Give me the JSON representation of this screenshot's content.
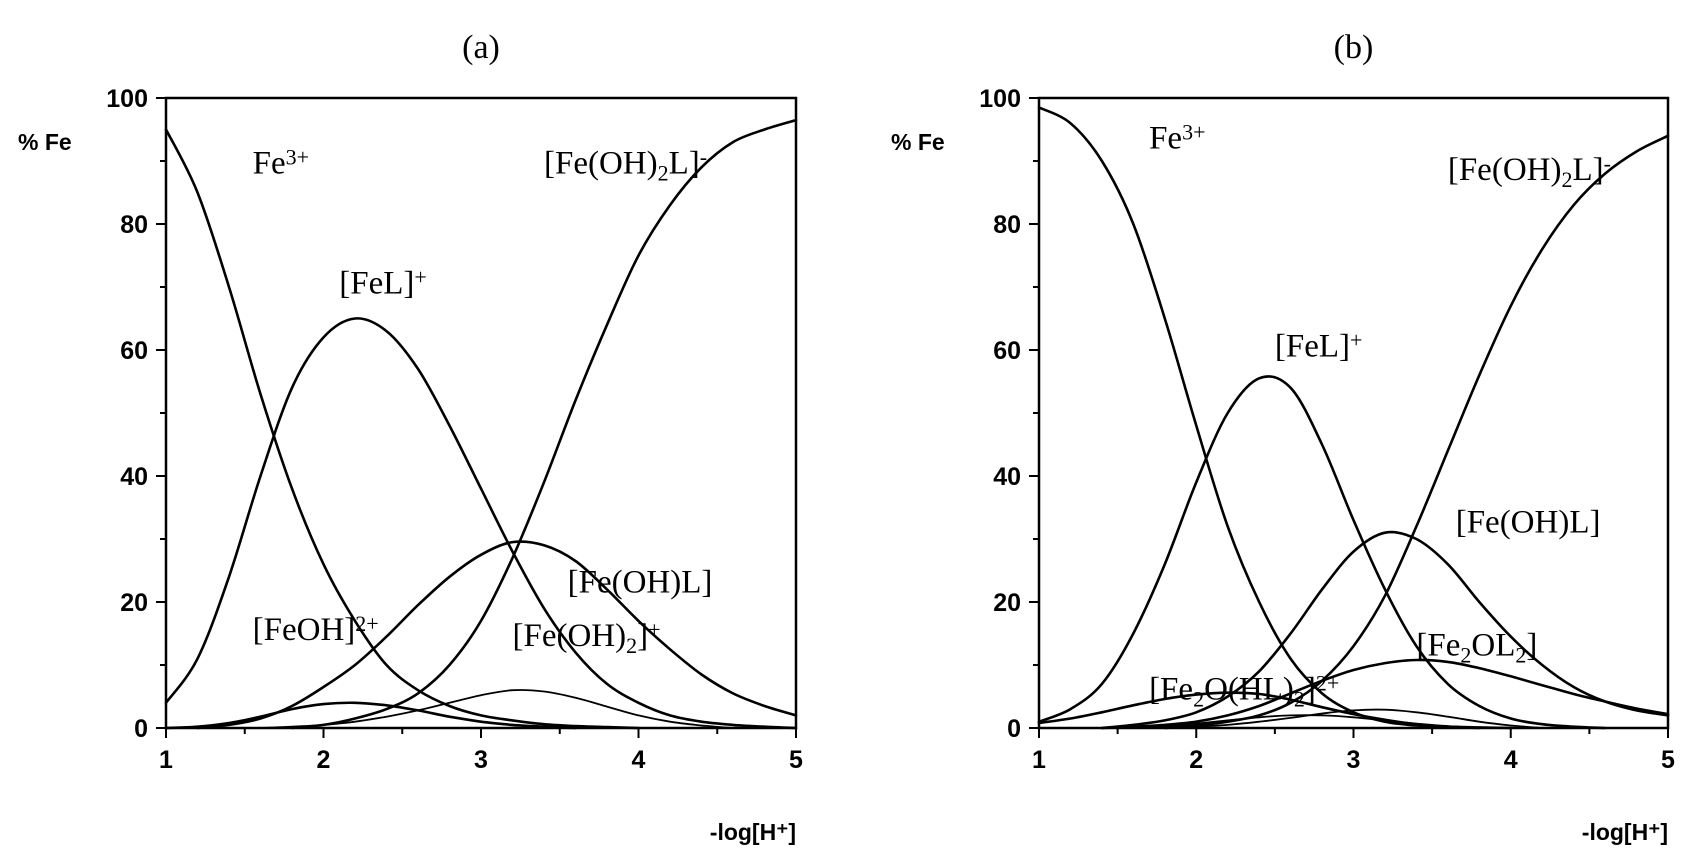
{
  "chart_data": [
    {
      "type": "line",
      "title": "(a)",
      "ylabel": "% Fe",
      "xlabel": "-log[H⁺]",
      "xlim": [
        1,
        5
      ],
      "ylim": [
        0,
        100
      ],
      "x_ticks": [
        "1",
        "2",
        "3",
        "4",
        "5"
      ],
      "y_ticks": [
        "0",
        "20",
        "40",
        "60",
        "80",
        "100"
      ],
      "grid": false,
      "labels": [
        {
          "series": "fe3",
          "base": "Fe",
          "sup": "3+",
          "x": 1.55,
          "y": 88
        },
        {
          "series": "fel",
          "base": "[FeL]",
          "sup": "+",
          "x": 2.1,
          "y": 69
        },
        {
          "series": "feoh",
          "base": "[FeOH]",
          "sup": "2+",
          "x": 1.55,
          "y": 14
        },
        {
          "series": "feoh2",
          "base": "[Fe(OH)",
          "sub": "2",
          "tail": "]",
          "sup": "+",
          "x": 3.2,
          "y": 13
        },
        {
          "series": "feohl",
          "base": "[Fe(OH)L]",
          "x": 3.55,
          "y": 21.5
        },
        {
          "series": "feoh2l",
          "base": "[Fe(OH)",
          "sub": "2",
          "tail": "L]",
          "sup": "-",
          "x": 3.4,
          "y": 88
        }
      ],
      "series": [
        {
          "id": "fe3",
          "x": [
            1.0,
            1.2,
            1.4,
            1.6,
            1.8,
            2.0,
            2.2,
            2.4,
            2.6,
            2.8,
            3.0,
            3.2,
            3.4,
            3.6,
            3.8,
            4.0
          ],
          "values": [
            95,
            85,
            70,
            53,
            38,
            26,
            17,
            10,
            6,
            3.5,
            2,
            1.2,
            0.6,
            0.3,
            0.15,
            0
          ]
        },
        {
          "id": "fel",
          "x": [
            1.0,
            1.2,
            1.4,
            1.6,
            1.8,
            2.0,
            2.2,
            2.4,
            2.6,
            2.8,
            3.0,
            3.2,
            3.4,
            3.6,
            3.8,
            4.0,
            4.2,
            4.4,
            4.6,
            4.8,
            5.0
          ],
          "values": [
            4,
            11,
            24,
            40,
            54,
            62,
            65,
            63,
            57,
            48,
            38,
            28,
            19,
            12,
            7,
            4,
            2,
            1,
            0.5,
            0.2,
            0
          ]
        },
        {
          "id": "feoh",
          "x": [
            1.0,
            1.2,
            1.4,
            1.6,
            1.8,
            2.0,
            2.2,
            2.4,
            2.6,
            2.8,
            3.0,
            3.2,
            3.4,
            3.6
          ],
          "values": [
            0,
            0.2,
            0.8,
            1.8,
            3,
            3.8,
            4,
            3.6,
            2.8,
            1.8,
            1,
            0.5,
            0.2,
            0
          ]
        },
        {
          "id": "feohl",
          "x": [
            1.2,
            1.4,
            1.6,
            1.8,
            2.0,
            2.2,
            2.4,
            2.6,
            2.8,
            3.0,
            3.2,
            3.4,
            3.6,
            3.8,
            4.0,
            4.2,
            4.4,
            4.6,
            4.8,
            5.0
          ],
          "values": [
            0,
            0.5,
            1.5,
            3.5,
            6.5,
            10,
            14.5,
            19.5,
            24,
            27.5,
            29.5,
            29,
            26.5,
            22,
            17,
            12.5,
            8.5,
            5.5,
            3.5,
            2
          ]
        },
        {
          "id": "feoh2",
          "x": [
            1.6,
            1.8,
            2.0,
            2.2,
            2.4,
            2.6,
            2.8,
            3.0,
            3.2,
            3.4,
            3.6,
            3.8,
            4.0,
            4.2,
            4.4,
            4.6
          ],
          "values": [
            0,
            0.2,
            0.5,
            1,
            1.8,
            2.8,
            4,
            5.2,
            6,
            5.8,
            4.8,
            3.4,
            2,
            1,
            0.4,
            0
          ]
        },
        {
          "id": "feoh2l",
          "x": [
            1.8,
            2.0,
            2.2,
            2.4,
            2.6,
            2.8,
            3.0,
            3.2,
            3.4,
            3.6,
            3.8,
            4.0,
            4.2,
            4.4,
            4.6,
            4.8,
            5.0
          ],
          "values": [
            0,
            0.5,
            1.5,
            3,
            5.5,
            10,
            17,
            27,
            39,
            52,
            64,
            75,
            83,
            89,
            93,
            95,
            96.5
          ]
        }
      ]
    },
    {
      "type": "line",
      "title": "(b)",
      "ylabel": "% Fe",
      "xlabel": "-log[H⁺]",
      "xlim": [
        1,
        5
      ],
      "ylim": [
        0,
        100
      ],
      "x_ticks": [
        "1",
        "2",
        "3",
        "4",
        "5"
      ],
      "y_ticks": [
        "0",
        "20",
        "40",
        "60",
        "80",
        "100"
      ],
      "grid": false,
      "labels": [
        {
          "series": "fe3",
          "base": "Fe",
          "sup": "3+",
          "x": 1.7,
          "y": 92
        },
        {
          "series": "fel",
          "base": "[FeL]",
          "sup": "+",
          "x": 2.5,
          "y": 59
        },
        {
          "series": "feohl",
          "base": "[Fe(OH)L]",
          "x": 3.65,
          "y": 31
        },
        {
          "series": "fe2ol2",
          "base": "[Fe",
          "sub": "2",
          "tail": "OL",
          "sub2": "2",
          "tail2": "]",
          "x": 3.4,
          "y": 11.5
        },
        {
          "series": "fe2ohl2",
          "base": "[Fe",
          "sub": "2",
          "tail": "O(HL)",
          "sub2": "2",
          "tail2": "]",
          "sup": "2+",
          "x": 1.7,
          "y": 4.5
        },
        {
          "series": "feoh2l",
          "base": "[Fe(OH)",
          "sub": "2",
          "tail": "L]",
          "sup": "-",
          "x": 3.6,
          "y": 87
        }
      ],
      "series": [
        {
          "id": "fe3",
          "x": [
            1.0,
            1.2,
            1.4,
            1.6,
            1.8,
            2.0,
            2.2,
            2.4,
            2.6,
            2.8,
            3.0,
            3.2,
            3.4,
            3.6,
            3.8,
            4.0
          ],
          "values": [
            98.5,
            96,
            90,
            80,
            65,
            48,
            32,
            20,
            11,
            5.5,
            2.5,
            1,
            0.4,
            0.2,
            0.1,
            0
          ]
        },
        {
          "id": "fel",
          "x": [
            1.0,
            1.2,
            1.4,
            1.6,
            1.8,
            2.0,
            2.2,
            2.4,
            2.6,
            2.8,
            3.0,
            3.2,
            3.4,
            3.6,
            3.8,
            4.0,
            4.2,
            4.4,
            4.6
          ],
          "values": [
            1,
            3,
            7,
            15,
            26,
            39,
            50,
            55.5,
            54,
            45,
            33,
            22,
            13,
            7,
            3.5,
            1.5,
            0.6,
            0.2,
            0
          ]
        },
        {
          "id": "feohl",
          "x": [
            1.4,
            1.6,
            1.8,
            2.0,
            2.2,
            2.4,
            2.6,
            2.8,
            3.0,
            3.2,
            3.4,
            3.6,
            3.8,
            4.0,
            4.2,
            4.4,
            4.6,
            4.8,
            5.0
          ],
          "values": [
            0,
            0.5,
            1.2,
            2.5,
            5,
            9,
            15,
            22,
            28,
            31,
            30,
            26,
            20,
            14.5,
            10,
            6.5,
            4.2,
            2.8,
            2
          ]
        },
        {
          "id": "feoh2l",
          "x": [
            1.8,
            2.0,
            2.2,
            2.4,
            2.6,
            2.8,
            3.0,
            3.2,
            3.4,
            3.6,
            3.8,
            4.0,
            4.2,
            4.4,
            4.6,
            4.8,
            5.0
          ],
          "values": [
            0,
            0.4,
            1,
            2,
            4,
            7.5,
            13,
            21,
            32,
            44,
            56,
            67,
            76,
            83,
            88,
            91.5,
            94
          ]
        },
        {
          "id": "fe2ol2",
          "x": [
            1.4,
            1.6,
            1.8,
            2.0,
            2.2,
            2.4,
            2.6,
            2.8,
            3.0,
            3.2,
            3.4,
            3.6,
            3.8,
            4.0,
            4.2,
            4.4,
            4.6,
            4.8,
            5.0
          ],
          "values": [
            0,
            0.2,
            0.5,
            1,
            2,
            3.5,
            5.5,
            7.5,
            9.2,
            10.3,
            10.8,
            10.5,
            9.5,
            8.2,
            6.8,
            5.4,
            4.2,
            3.1,
            2.2
          ]
        },
        {
          "id": "fe2ohl2",
          "x": [
            1.0,
            1.2,
            1.4,
            1.6,
            1.8,
            2.0,
            2.2,
            2.4,
            2.6,
            2.8,
            3.0,
            3.2,
            3.4,
            3.6,
            3.8
          ],
          "values": [
            0.8,
            1.5,
            2.5,
            3.6,
            4.6,
            5.3,
            5.6,
            5.4,
            4.5,
            3.3,
            2.2,
            1.3,
            0.6,
            0.2,
            0
          ]
        },
        {
          "id": "minor1",
          "x": [
            1.6,
            1.8,
            2.0,
            2.2,
            2.4,
            2.6,
            2.8,
            3.0,
            3.2,
            3.4,
            3.6,
            3.8,
            4.0
          ],
          "values": [
            0,
            0.3,
            0.7,
            1.2,
            1.7,
            2,
            2,
            1.7,
            1.2,
            0.7,
            0.3,
            0.1,
            0
          ]
        },
        {
          "id": "minor2",
          "x": [
            1.8,
            2.0,
            2.2,
            2.4,
            2.6,
            2.8,
            3.0,
            3.2,
            3.4,
            3.6,
            3.8,
            4.0,
            4.2
          ],
          "values": [
            0,
            0.2,
            0.5,
            1,
            1.6,
            2.3,
            2.8,
            2.9,
            2.5,
            1.8,
            1,
            0.4,
            0
          ]
        }
      ]
    }
  ]
}
